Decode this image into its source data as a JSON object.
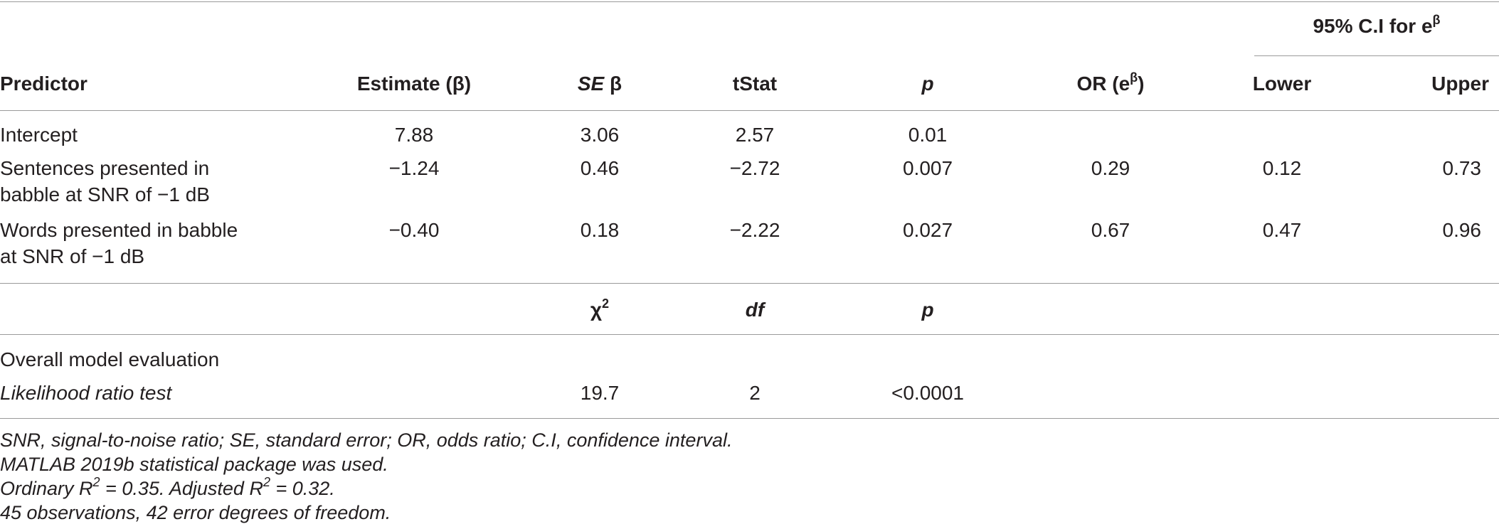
{
  "table": {
    "ci_group_header": {
      "text": "95% C.I for e",
      "sup": "β"
    },
    "headers": {
      "predictor": "Predictor",
      "estimate": "Estimate (β)",
      "se_italic": "SE",
      "se_rest": " β",
      "tstat": "tStat",
      "p": "p",
      "or_text": "OR (e",
      "or_sup": "β",
      "or_close": ")",
      "lower": "Lower",
      "upper": "Upper"
    },
    "rows": [
      {
        "predictor_line1": "Intercept",
        "predictor_line2": "",
        "estimate": "7.88",
        "se": "3.06",
        "tstat": "2.57",
        "p": "0.01",
        "or": "",
        "lower": "",
        "upper": ""
      },
      {
        "predictor_line1": "Sentences presented in",
        "predictor_line2": "babble at SNR of −1 dB",
        "estimate": "−1.24",
        "se": "0.46",
        "tstat": "−2.72",
        "p": "0.007",
        "or": "0.29",
        "lower": "0.12",
        "upper": "0.73"
      },
      {
        "predictor_line1": "Words presented in babble",
        "predictor_line2": "at SNR of −1 dB",
        "estimate": "−0.40",
        "se": "0.18",
        "tstat": "−2.22",
        "p": "0.027",
        "or": "0.67",
        "lower": "0.47",
        "upper": "0.96"
      }
    ],
    "model_headers": {
      "chi": "χ",
      "chi_sup": "2",
      "df": "df",
      "p": "p"
    },
    "model_section_label": "Overall model evaluation",
    "model_row": {
      "label": "Likelihood ratio test",
      "chi2": "19.7",
      "df": "2",
      "p": "<0.0001"
    }
  },
  "notes": {
    "line1": "SNR, signal-to-noise ratio; SE, standard error; OR, odds ratio; C.I, confidence interval.",
    "line2": "MATLAB 2019b statistical package was used.",
    "line3_a": "Ordinary R",
    "line3_sup1": "2",
    "line3_b": " = 0.35. Adjusted R",
    "line3_sup2": "2",
    "line3_c": " = 0.32.",
    "line4": "45 observations, 42 error degrees of freedom."
  }
}
